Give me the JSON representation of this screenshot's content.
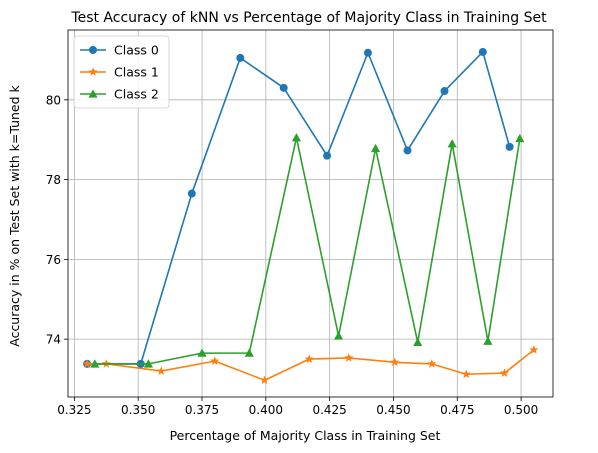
{
  "chart_data": {
    "type": "line",
    "title": "Test Accuracy of kNN vs Percentage of Majority Class in Training Set",
    "xlabel": "Percentage of Majority Class in Training Set",
    "ylabel": "Accuracy in % on Test Set with k=Tuned k",
    "xlim": [
      0.3225,
      0.5125
    ],
    "ylim": [
      72.55,
      81.75
    ],
    "xticks": [
      0.325,
      0.35,
      0.375,
      0.4,
      0.425,
      0.45,
      0.475,
      0.5
    ],
    "xtick_labels": [
      "0.325",
      "0.350",
      "0.375",
      "0.400",
      "0.425",
      "0.450",
      "0.475",
      "0.500"
    ],
    "yticks": [
      74,
      76,
      78,
      80
    ],
    "ytick_labels": [
      "74",
      "76",
      "78",
      "80"
    ],
    "grid": true,
    "legend_position": "top-left",
    "series": [
      {
        "name": "Class 0",
        "color": "#1f77b4",
        "marker": "circle",
        "x": [
          0.33,
          0.351,
          0.371,
          0.39,
          0.407,
          0.424,
          0.44,
          0.4555,
          0.47,
          0.485,
          0.4955
        ],
        "y": [
          73.38,
          73.38,
          77.65,
          81.05,
          80.3,
          78.6,
          81.18,
          78.73,
          80.22,
          81.2,
          78.82
        ]
      },
      {
        "name": "Class 1",
        "color": "#ff7f0e",
        "marker": "star",
        "x": [
          0.33,
          0.3375,
          0.359,
          0.38,
          0.3995,
          0.417,
          0.4325,
          0.4505,
          0.465,
          0.4785,
          0.4935,
          0.505
        ],
        "y": [
          73.38,
          73.38,
          73.2,
          73.45,
          72.97,
          73.5,
          73.53,
          73.42,
          73.38,
          73.12,
          73.15,
          73.73
        ]
      },
      {
        "name": "Class 2",
        "color": "#2ca02c",
        "marker": "triangle",
        "x": [
          0.333,
          0.354,
          0.375,
          0.3935,
          0.412,
          0.4285,
          0.443,
          0.4595,
          0.473,
          0.487,
          0.4995
        ],
        "y": [
          73.38,
          73.38,
          73.65,
          73.65,
          79.05,
          74.08,
          78.78,
          73.92,
          78.9,
          73.95,
          79.03
        ]
      }
    ]
  }
}
